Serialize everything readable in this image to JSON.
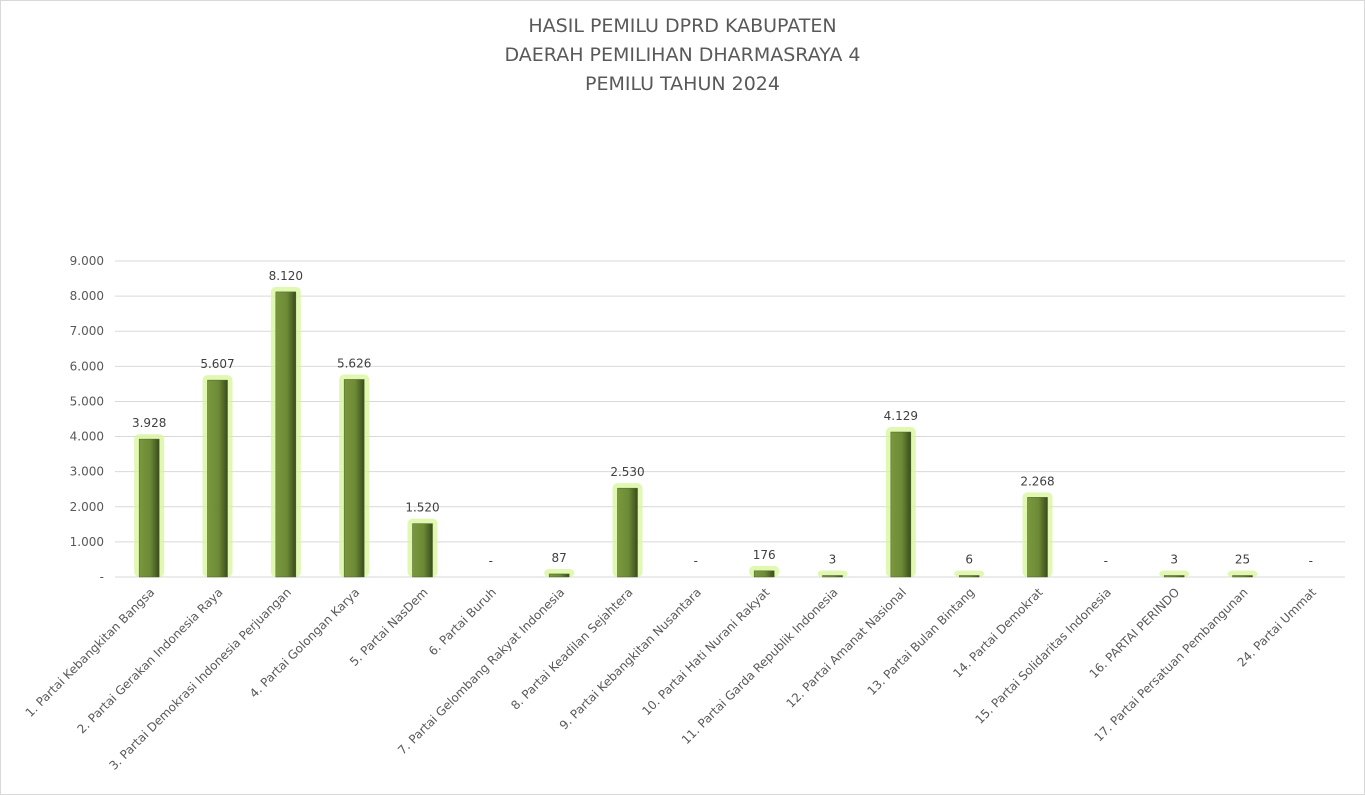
{
  "chart_data": {
    "type": "bar",
    "title": [
      "HASIL PEMILU DPRD KABUPATEN",
      "DAERAH PEMILIHAN DHARMASRAYA 4",
      "PEMILU TAHUN 2024"
    ],
    "xlabel": "",
    "ylabel": "",
    "ylim": [
      0,
      9000
    ],
    "grid": true,
    "legend": "none",
    "y_ticks": [
      0,
      1000,
      2000,
      3000,
      4000,
      5000,
      6000,
      7000,
      8000,
      9000
    ],
    "y_tick_labels": [
      "-",
      "1.000",
      "2.000",
      "3.000",
      "4.000",
      "5.000",
      "6.000",
      "7.000",
      "8.000",
      "9.000"
    ],
    "categories": [
      "1. Partai Kebangkitan Bangsa",
      "2. Partai Gerakan Indonesia Raya",
      "3. Partai Demokrasi Indonesia Perjuangan",
      "4. Partai Golongan Karya",
      "5. Partai NasDem",
      "6. Partai Buruh",
      "7. Partai Gelombang Rakyat Indonesia",
      "8. Partai Keadilan Sejahtera",
      "9. Partai Kebangkitan Nusantara",
      "10. Partai Hati Nurani Rakyat",
      "11. Partai Garda Republik Indonesia",
      "12. Partai Amanat Nasional",
      "13. Partai Bulan Bintang",
      "14. Partai Demokrat",
      "15. Partai Solidaritas Indonesia",
      "16. PARTAI PERINDO",
      "17. Partai Persatuan Pembangunan",
      "24. Partai Ummat"
    ],
    "values": [
      3928,
      5607,
      8120,
      5626,
      1520,
      0,
      87,
      2530,
      0,
      176,
      3,
      4129,
      6,
      2268,
      0,
      3,
      25,
      0
    ],
    "data_labels": [
      "3.928",
      "5.607",
      "8.120",
      "5.626",
      "1.520",
      "-",
      "87",
      "2.530",
      "-",
      "176",
      "3",
      "4.129",
      "6",
      "2.268",
      "-",
      "3",
      "25",
      "-"
    ],
    "colors": {
      "bar": "#76923c",
      "bar_dark": "#3f5220",
      "glow": "#d7f59a",
      "grid": "#d9d9d9",
      "text": "#595959"
    }
  }
}
